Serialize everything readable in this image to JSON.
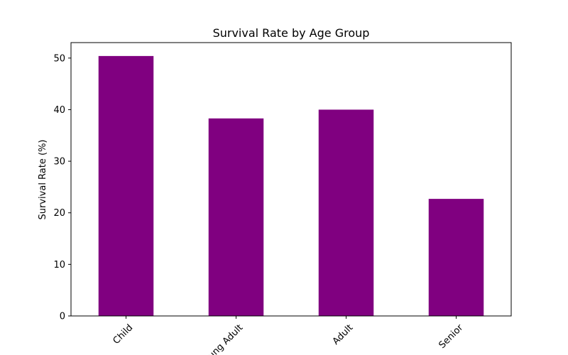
{
  "chart_data": {
    "type": "bar",
    "title": "Survival Rate by Age Group",
    "xlabel": "",
    "ylabel": "Survival Rate (%)",
    "categories": [
      "Child",
      "Young Adult",
      "Adult",
      "Senior"
    ],
    "values": [
      50.4,
      38.3,
      40.0,
      22.7
    ],
    "ylim": [
      0,
      53
    ],
    "yticks": [
      0,
      10,
      20,
      30,
      40,
      50
    ],
    "grid": false,
    "legend": "none",
    "bar_color": "#800080",
    "xtick_rotation": 45
  }
}
